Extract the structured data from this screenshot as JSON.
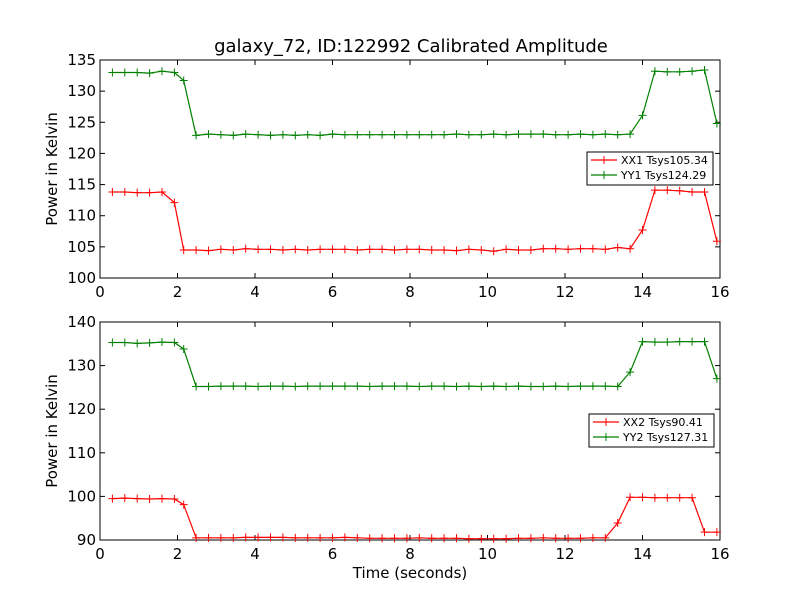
{
  "chart_data": {
    "title": "galaxy_72, ID:122992 Calibrated Amplitude",
    "xlabel": "Time (seconds)",
    "x": [
      0.32,
      0.64,
      0.96,
      1.28,
      1.6,
      1.92,
      2.16,
      2.48,
      2.8,
      3.12,
      3.44,
      3.76,
      4.08,
      4.4,
      4.72,
      5.04,
      5.36,
      5.68,
      6.0,
      6.32,
      6.64,
      6.96,
      7.28,
      7.6,
      7.92,
      8.24,
      8.56,
      8.88,
      9.2,
      9.52,
      9.84,
      10.16,
      10.48,
      10.8,
      11.12,
      11.44,
      11.76,
      12.08,
      12.4,
      12.72,
      13.04,
      13.36,
      13.68,
      14.0,
      14.32,
      14.64,
      14.96,
      15.28,
      15.6,
      15.92
    ],
    "panels": [
      {
        "ylabel": "Power in Kelvin",
        "ylim": [
          100,
          135
        ],
        "yticks": [
          100,
          105,
          110,
          115,
          120,
          125,
          130,
          135
        ],
        "xlim": [
          0,
          16
        ],
        "xticks": [
          0,
          2,
          4,
          6,
          8,
          10,
          12,
          14,
          16
        ],
        "show_xlabel": false,
        "legend": {
          "placement": "right"
        },
        "series": [
          {
            "name": "XX1 Tsys105.34",
            "color": "#ff0000",
            "values": [
              113.8,
              113.8,
              113.7,
              113.7,
              113.8,
              112.1,
              104.5,
              104.5,
              104.4,
              104.6,
              104.5,
              104.7,
              104.6,
              104.6,
              104.5,
              104.6,
              104.5,
              104.6,
              104.6,
              104.6,
              104.5,
              104.6,
              104.6,
              104.5,
              104.6,
              104.6,
              104.5,
              104.5,
              104.4,
              104.6,
              104.5,
              104.3,
              104.6,
              104.5,
              104.5,
              104.7,
              104.7,
              104.6,
              104.7,
              104.7,
              104.6,
              104.9,
              104.7,
              107.7,
              114.1,
              114.1,
              114.0,
              113.8,
              113.8,
              105.9
            ]
          },
          {
            "name": "YY1 Tsys124.29",
            "color": "#008000",
            "values": [
              133.0,
              133.0,
              133.0,
              132.9,
              133.2,
              133.0,
              131.7,
              122.9,
              123.1,
              123.0,
              122.9,
              123.1,
              123.0,
              122.9,
              123.0,
              122.9,
              123.0,
              122.9,
              123.1,
              123.0,
              123.0,
              123.0,
              123.0,
              123.0,
              123.0,
              123.0,
              123.0,
              123.0,
              123.1,
              123.0,
              123.0,
              123.1,
              123.0,
              123.1,
              123.1,
              123.1,
              123.0,
              123.0,
              123.1,
              123.0,
              123.1,
              123.0,
              123.1,
              126.1,
              133.2,
              133.1,
              133.1,
              133.2,
              133.4,
              124.8
            ]
          }
        ]
      },
      {
        "ylabel": "Power in Kelvin",
        "ylim": [
          90,
          140
        ],
        "yticks": [
          90,
          100,
          110,
          120,
          130,
          140
        ],
        "xlim": [
          0,
          16
        ],
        "xticks": [
          0,
          2,
          4,
          6,
          8,
          10,
          12,
          14,
          16
        ],
        "show_xlabel": true,
        "legend": {
          "placement": "right"
        },
        "series": [
          {
            "name": "XX2 Tsys90.41",
            "color": "#ff0000",
            "values": [
              99.5,
              99.6,
              99.5,
              99.4,
              99.5,
              99.4,
              98.1,
              90.5,
              90.5,
              90.5,
              90.5,
              90.6,
              90.6,
              90.6,
              90.6,
              90.5,
              90.5,
              90.5,
              90.5,
              90.6,
              90.5,
              90.4,
              90.4,
              90.4,
              90.4,
              90.5,
              90.4,
              90.4,
              90.4,
              90.3,
              90.3,
              90.3,
              90.3,
              90.4,
              90.4,
              90.5,
              90.4,
              90.4,
              90.4,
              90.5,
              90.5,
              93.9,
              99.8,
              99.8,
              99.7,
              99.7,
              99.7,
              99.7,
              91.8,
              91.8
            ]
          },
          {
            "name": "YY2 Tsys127.31",
            "color": "#008000",
            "values": [
              135.3,
              135.3,
              135.1,
              135.2,
              135.4,
              135.3,
              133.8,
              125.2,
              125.2,
              125.3,
              125.3,
              125.3,
              125.2,
              125.3,
              125.3,
              125.2,
              125.3,
              125.3,
              125.3,
              125.3,
              125.3,
              125.2,
              125.3,
              125.3,
              125.3,
              125.2,
              125.3,
              125.3,
              125.2,
              125.3,
              125.2,
              125.3,
              125.2,
              125.3,
              125.2,
              125.2,
              125.3,
              125.2,
              125.3,
              125.3,
              125.3,
              125.2,
              128.5,
              135.5,
              135.4,
              135.4,
              135.5,
              135.5,
              135.5,
              127.0
            ]
          }
        ]
      }
    ]
  }
}
